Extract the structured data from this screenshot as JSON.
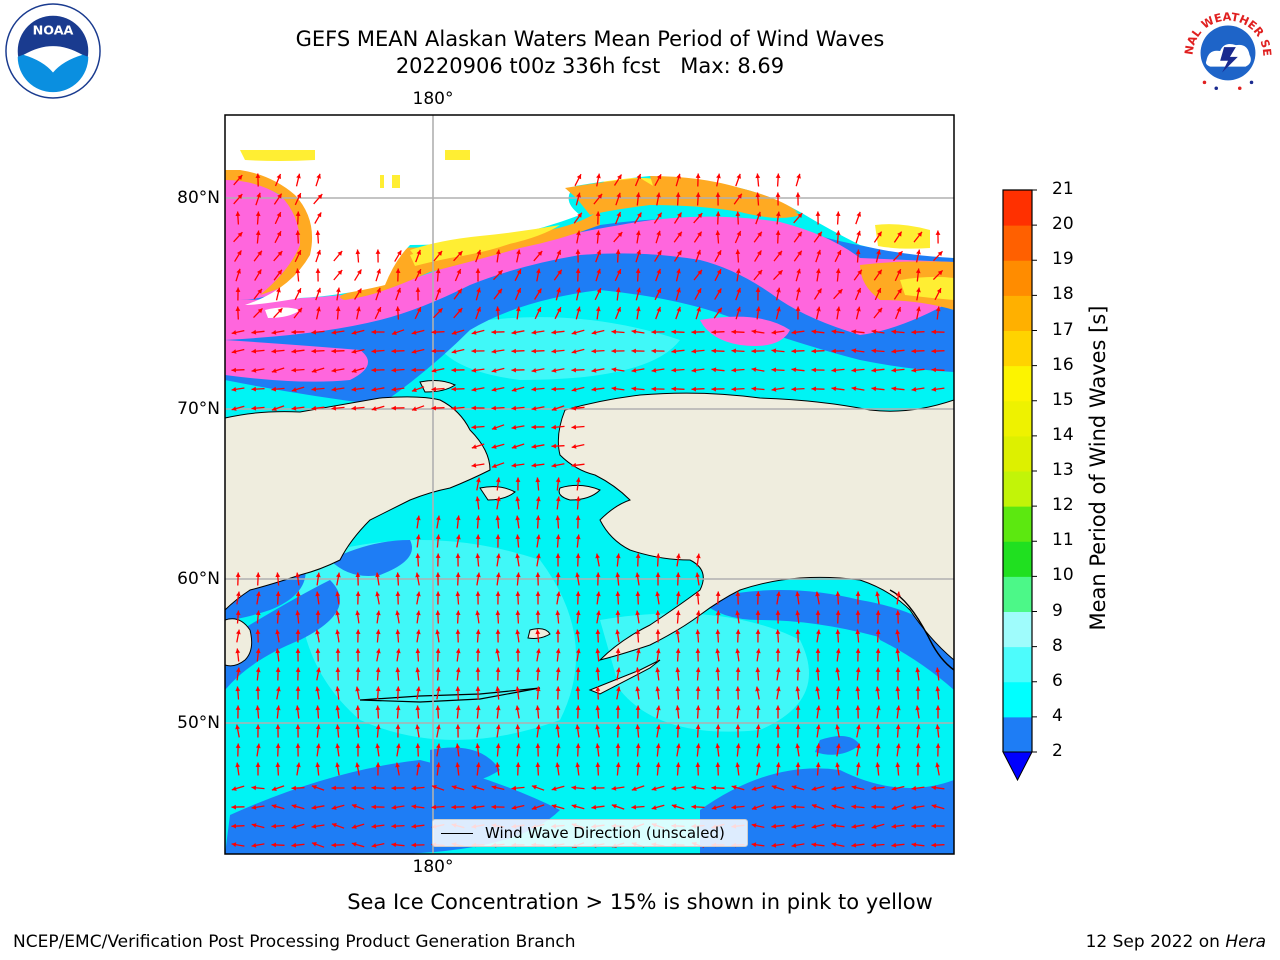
{
  "title": {
    "line1": "GEFS MEAN Alaskan Waters Mean Period of Wind Waves",
    "line2": "20220906 t00z 336h fcst   Max: 8.69"
  },
  "map": {
    "lon_label_top": "180°",
    "lon_label_bottom": "180°",
    "lat_labels": [
      "80°N",
      "70°N",
      "60°N",
      "50°N"
    ],
    "legend_label": "Wind Wave Direction (unscaled)",
    "arrow_color": "#ff0000",
    "land_color": "#efedde",
    "ice_colors": [
      "#ff66dd",
      "#ffaa22",
      "#ffee33"
    ]
  },
  "colorbar": {
    "title": "Mean Period of Wind Waves [s]",
    "ticks": [
      "2",
      "4",
      "6",
      "8",
      "9",
      "10",
      "11",
      "12",
      "13",
      "14",
      "15",
      "16",
      "17",
      "18",
      "19",
      "20",
      "21"
    ],
    "colors": [
      "#1e7df5",
      "#00ffff",
      "#4dfcfc",
      "#9ffcfc",
      "#4cf888",
      "#20e020",
      "#5ce810",
      "#c2f408",
      "#ddf000",
      "#eef200",
      "#fcf400",
      "#ffd300",
      "#ffb000",
      "#ff8c00",
      "#ff6000",
      "#ff3000"
    ],
    "extend_color": "#0000ff"
  },
  "caption": "Sea Ice Concentration > 15% is shown in pink to yellow",
  "footer": {
    "left": "NCEP/EMC/Verification Post Processing Product Generation Branch",
    "right_prefix": "12 Sep 2022 on ",
    "right_host": "Hera"
  },
  "logos": {
    "noaa_text": "NOAA",
    "nws_text": "NATIONAL WEATHER SERVICE"
  }
}
